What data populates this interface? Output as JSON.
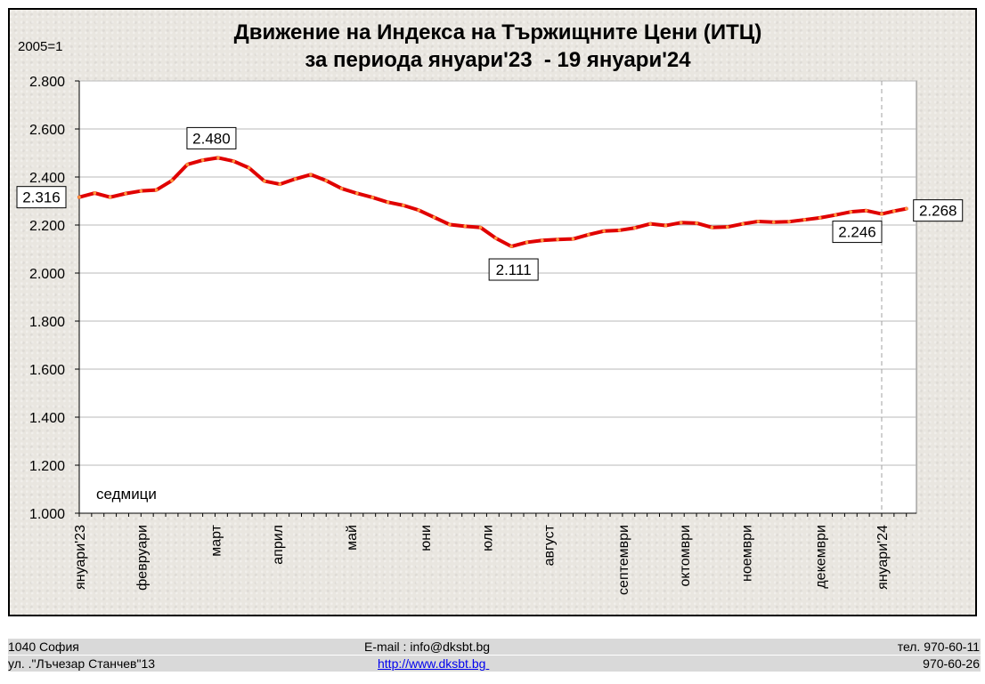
{
  "chart_data": {
    "type": "line",
    "title": "Движение на Индекса на Тържищните Цени (ИТЦ)",
    "subtitle": "за периода януари'23  - 19 януари'24",
    "unit_label": "2005=1",
    "xlabel": "седмици",
    "ylabel": "",
    "ylim": [
      1.0,
      2.8
    ],
    "yticks": [
      1.0,
      1.2,
      1.4,
      1.6,
      1.8,
      2.0,
      2.2,
      2.4,
      2.6,
      2.8
    ],
    "ytick_labels": [
      "1.000",
      "1.200",
      "1.400",
      "1.600",
      "1.800",
      "2.000",
      "2.200",
      "2.400",
      "2.600",
      "2.800"
    ],
    "x_month_labels": [
      "януари'23",
      "февруари",
      "март",
      "април",
      "май",
      "юни",
      "юли",
      "август",
      "септември",
      "октомври",
      "ноември",
      "декември",
      "януари'24"
    ],
    "x_month_week_index": [
      0,
      5,
      11,
      16,
      22,
      28,
      33,
      38,
      44,
      49,
      54,
      60,
      65
    ],
    "grid": true,
    "legend": "none",
    "line_color": "#e00000",
    "series": [
      {
        "values": [
          2.316,
          2.333,
          2.316,
          2.331,
          2.342,
          2.346,
          2.385,
          2.452,
          2.47,
          2.48,
          2.466,
          2.438,
          2.383,
          2.37,
          2.392,
          2.41,
          2.385,
          2.352,
          2.332,
          2.315,
          2.295,
          2.282,
          2.262,
          2.232,
          2.202,
          2.195,
          2.19,
          2.145,
          2.111,
          2.128,
          2.136,
          2.14,
          2.142,
          2.16,
          2.175,
          2.178,
          2.188,
          2.205,
          2.198,
          2.21,
          2.208,
          2.19,
          2.192,
          2.205,
          2.215,
          2.212,
          2.214,
          2.222,
          2.23,
          2.242,
          2.255,
          2.26,
          2.246,
          2.258,
          2.268
        ]
      }
    ],
    "annotations": [
      {
        "label": "2.316",
        "index": 0
      },
      {
        "label": "2.480",
        "index": 9
      },
      {
        "label": "2.111",
        "index": 28
      },
      {
        "label": "2.246",
        "index": 52
      },
      {
        "label": "2.268",
        "index": 54
      }
    ],
    "marker_line_label": "януари'24"
  },
  "footer": {
    "address_line1": "1040 София",
    "address_line2": "ул. .\"Лъчезар Станчев\"13",
    "email": "E-mail : info@dksbt.bg",
    "website": "http://www.dksbt.bg ",
    "phone1": "тел. 970-60-11",
    "phone2": "970-60-26"
  }
}
